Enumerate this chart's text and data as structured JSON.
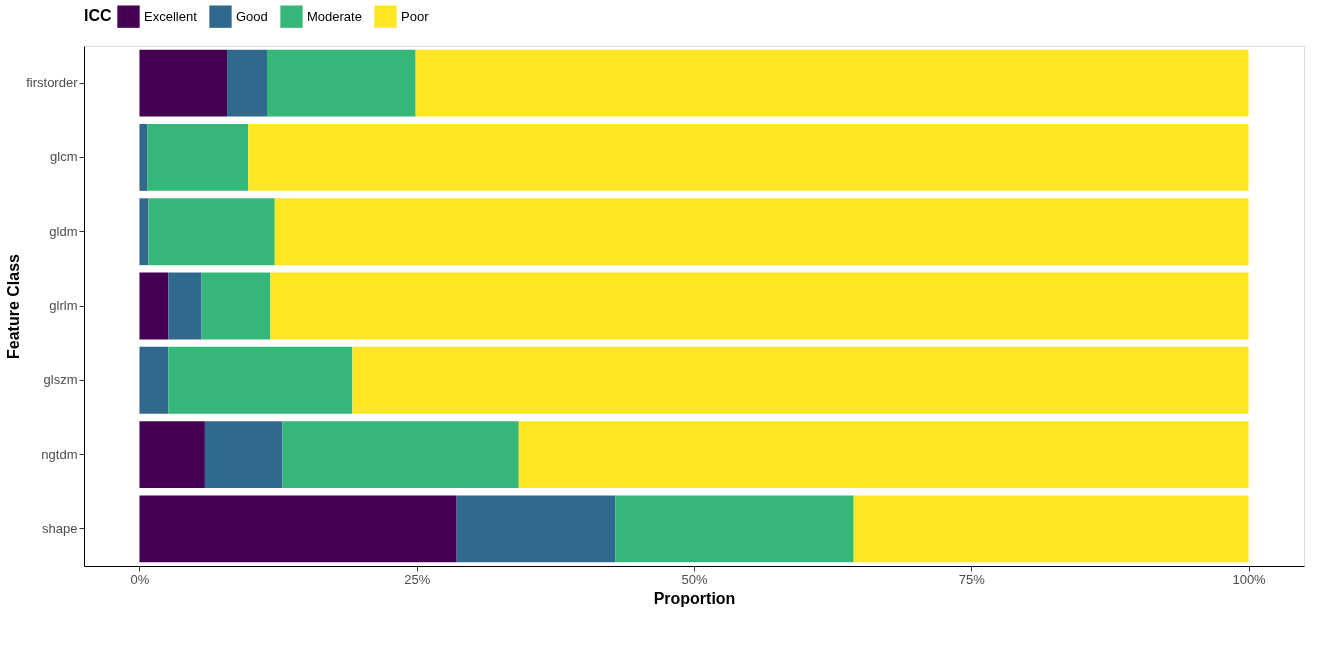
{
  "chart_data": {
    "type": "bar",
    "orientation": "horizontal",
    "stacked": true,
    "xlabel": "Proportion",
    "ylabel": "Feature Class",
    "legend_title": "ICC",
    "legend": "top",
    "grid": false,
    "categories": [
      "firstorder",
      "glcm",
      "gldm",
      "glrlm",
      "glszm",
      "ngtdm",
      "shape"
    ],
    "series": [
      {
        "name": "Excellent",
        "color": "#440154",
        "values": [
          7.9,
          0,
          0,
          2.6,
          0,
          5.9,
          28.6
        ]
      },
      {
        "name": "Good",
        "color": "#31688e",
        "values": [
          3.6,
          0.7,
          0.8,
          3.0,
          2.6,
          7.0,
          14.3
        ]
      },
      {
        "name": "Moderate",
        "color": "#35b779",
        "values": [
          13.4,
          9.1,
          11.4,
          6.2,
          16.6,
          21.3,
          21.5
        ]
      },
      {
        "name": "Poor",
        "color": "#fde725",
        "values": [
          75.1,
          90.2,
          87.8,
          88.2,
          80.8,
          65.8,
          35.6
        ]
      }
    ],
    "xlim": [
      -5,
      105
    ],
    "xticks": [
      {
        "value": 0,
        "label": "0%"
      },
      {
        "value": 25,
        "label": "25%"
      },
      {
        "value": 50,
        "label": "50%"
      },
      {
        "value": 75,
        "label": "75%"
      },
      {
        "value": 100,
        "label": "100%"
      }
    ]
  }
}
